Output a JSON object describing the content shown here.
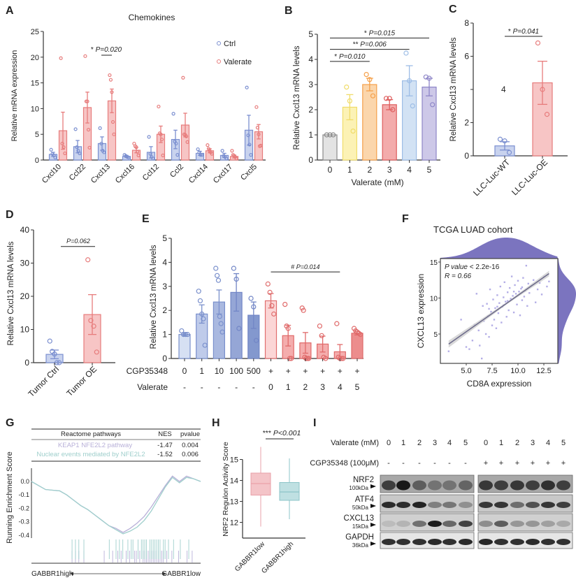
{
  "panel_labels": {
    "A": "A",
    "B": "B",
    "C": "C",
    "D": "D",
    "E": "E",
    "F": "F",
    "G": "G",
    "H": "H",
    "I": "I"
  },
  "colors": {
    "ctrl_fill": "#c9d3ee",
    "ctrl_stroke": "#7b8fd0",
    "val_fill": "#f7c5c5",
    "val_stroke": "#e77c7c",
    "scatter": "#b4aee6",
    "density": "#7b74bf",
    "keap1": "#b8b0d8",
    "nuclear": "#9fcfcc",
    "box_low": "#f4c4c8",
    "box_high": "#bfe0e2"
  },
  "chart_data": [
    {
      "id": "A",
      "type": "bar",
      "title": "Chemokines",
      "ylabel": "Relative mRNA expression",
      "xlabel": "",
      "ylim": [
        0,
        25
      ],
      "yticks": [
        0,
        5,
        10,
        15,
        20,
        25
      ],
      "categories": [
        "Cxcl10",
        "Ccl22",
        "Cxcl13",
        "Cxcl16",
        "Ccl12",
        "Ccl2",
        "Cxcl14",
        "Cxcl17",
        "Cxcl5"
      ],
      "legend_position": "top-right",
      "series": [
        {
          "name": "Ctrl",
          "values": [
            1.1,
            2.6,
            3.2,
            0.7,
            1.5,
            4.0,
            1.3,
            0.9,
            5.8
          ],
          "sem": [
            0.4,
            1.2,
            1.3,
            0.2,
            1.1,
            1.8,
            0.4,
            0.4,
            2.9
          ],
          "points": [
            [
              2.0,
              1.2,
              0.9,
              0.5
            ],
            [
              6.0,
              2.5,
              1.8,
              1.3
            ],
            [
              6.2,
              3.2,
              1.8,
              1.5
            ],
            [
              1.0,
              0.8,
              0.6,
              0.5
            ],
            [
              4.5,
              1.2,
              0.6,
              0.3
            ],
            [
              9.0,
              3.6,
              3.2,
              1.0
            ],
            [
              2.1,
              1.5,
              1.0,
              1.0
            ],
            [
              1.8,
              0.8,
              0.6,
              0.3
            ],
            [
              14.1,
              4.8,
              3.0,
              1.0
            ]
          ]
        },
        {
          "name": "Valerate",
          "values": [
            5.7,
            10.2,
            11.5,
            1.9,
            5.0,
            6.8,
            1.8,
            0.7,
            5.5
          ],
          "sem": [
            3.6,
            3.0,
            2.3,
            0.5,
            1.6,
            2.3,
            0.4,
            0.3,
            1.4
          ],
          "points": [
            [
              19.8,
              3.2,
              2.5,
              1.3
            ],
            [
              20.2,
              11.4,
              11.4,
              5.9,
              2.4
            ],
            [
              16.5,
              15.6,
              13.2,
              7.4,
              5.0
            ],
            [
              3.2,
              2.7,
              2.5,
              1.6,
              0.9
            ],
            [
              10.4,
              5.2,
              5.0,
              4.0,
              0.9
            ],
            [
              16.0,
              5.0,
              4.9,
              4.6,
              3.5
            ],
            [
              2.9,
              2.2,
              1.8,
              1.5,
              1.2
            ],
            [
              1.8,
              1.0,
              0.8,
              0.6,
              0.3
            ],
            [
              10.3,
              6.3,
              5.0,
              2.7,
              2.8
            ]
          ]
        }
      ],
      "annotations": [
        {
          "stars": "*",
          "p": "P=0.020",
          "category": "Cxcl13"
        }
      ]
    },
    {
      "id": "B",
      "type": "bar",
      "ylabel": "Relative Cxcl13 mRNA levels",
      "xlabel": "Valerate (mM)",
      "ylim": [
        0,
        5
      ],
      "yticks": [
        0,
        1,
        2,
        3,
        4,
        5
      ],
      "categories": [
        "0",
        "1",
        "2",
        "3",
        "4",
        "5"
      ],
      "values": [
        1.0,
        2.1,
        3.0,
        2.2,
        3.15,
        2.9
      ],
      "sem": [
        0.02,
        0.5,
        0.25,
        0.2,
        0.6,
        0.35
      ],
      "points": [
        [
          1,
          1,
          1
        ],
        [
          2.9,
          2.35,
          1.15
        ],
        [
          3.4,
          3.2,
          2.55
        ],
        [
          2.45,
          2.45,
          2.0
        ],
        [
          4.25,
          3.15,
          2.15
        ],
        [
          3.3,
          3.25,
          2.2
        ]
      ],
      "bar_colors": [
        [
          "#e3e3e3",
          "#8a8a8a"
        ],
        [
          "#fcf2b5",
          "#f0dc6a"
        ],
        [
          "#fbd6ac",
          "#f5a04a"
        ],
        [
          "#f3abab",
          "#de5e5e"
        ],
        [
          "#d2e2f4",
          "#9dbde6"
        ],
        [
          "#cdc8e8",
          "#8e86c8"
        ]
      ],
      "annotations": [
        {
          "stars": "*",
          "p": "P=0.010",
          "from": "0",
          "to": "2",
          "level": 3.92
        },
        {
          "stars": "**",
          "p": "P=0.006",
          "from": "0",
          "to": "4",
          "level": 4.4
        },
        {
          "stars": "*",
          "p": "P=0.015",
          "from": "0",
          "to": "5",
          "level": 4.85
        }
      ]
    },
    {
      "id": "C",
      "type": "bar",
      "ylabel": "Relative Cxcl13 mRNA levels",
      "xlabel": "",
      "ylim": [
        0,
        8
      ],
      "yticks": [
        0,
        2,
        4,
        6,
        8
      ],
      "categories": [
        "LLC-Luc-WT",
        "LLC-Luc-OE"
      ],
      "values": [
        0.6,
        4.4
      ],
      "sem": [
        0.25,
        1.3
      ],
      "points": [
        [
          1.0,
          0.9,
          0.2
        ],
        [
          6.8,
          4.0,
          2.5
        ]
      ],
      "annotations": [
        {
          "stars": "*",
          "p": "P=0.041",
          "level": 7.2
        }
      ]
    },
    {
      "id": "D",
      "type": "bar",
      "ylabel": "Relative Cxcl13 mRNA levels",
      "xlabel": "",
      "ylim": [
        0,
        40
      ],
      "yticks": [
        0,
        10,
        20,
        30,
        40
      ],
      "categories": [
        "Tumor Ctrl",
        "Tumor OE"
      ],
      "values": [
        2.5,
        14.5
      ],
      "sem": [
        1.3,
        6.0
      ],
      "points": [
        [
          6.5,
          3.4,
          2.6,
          0,
          0
        ],
        [
          31,
          12.7,
          11,
          3.2
        ]
      ],
      "annotations": [
        {
          "stars": "",
          "p": "P=0.062",
          "level": 35
        }
      ]
    },
    {
      "id": "E",
      "type": "bar",
      "ylabel": "Relative Cxcl13 mRNA levels",
      "xlabel": "",
      "ylim": [
        0,
        5
      ],
      "yticks": [
        0,
        1,
        2,
        3,
        4,
        5
      ],
      "row_labels": {
        "cgp": "CGP35348",
        "valerate": "Valerate"
      },
      "cgp_values": [
        "0",
        "1",
        "10",
        "100",
        "500",
        "+",
        "+",
        "+",
        "+",
        "+",
        "+"
      ],
      "valerate_values": [
        "-",
        "-",
        "-",
        "-",
        "-",
        "0",
        "1",
        "2",
        "3",
        "4",
        "5"
      ],
      "values": [
        1.0,
        1.85,
        2.35,
        2.75,
        1.8,
        2.4,
        0.95,
        0.65,
        0.6,
        0.28,
        1.05
      ],
      "sem": [
        0.05,
        0.38,
        0.5,
        0.78,
        0.55,
        0.3,
        0.43,
        0.43,
        0.33,
        0.3,
        0.07
      ],
      "points": [
        [
          1.15,
          1.0,
          1.0,
          1.0
        ],
        [
          2.8,
          2.4,
          1.85,
          1.65,
          0.55
        ],
        [
          3.75,
          3.45,
          3.25,
          1.75,
          1.45,
          1.1
        ],
        [
          3.75,
          3.3,
          1.25
        ],
        [
          2.5,
          2.15,
          0.75
        ],
        [
          3.1,
          2.75,
          2.2,
          1.85
        ],
        [
          2.25,
          1.35,
          1.25,
          0,
          0
        ],
        [
          2.1,
          2.0,
          0.05,
          0,
          0,
          0
        ],
        [
          1.35,
          0.95,
          0.05,
          0
        ],
        [
          1.45,
          0.05,
          0,
          0,
          0
        ],
        [
          1.25,
          1.15,
          1.1,
          1.05,
          1.0
        ]
      ],
      "bar_colors": [
        [
          "#d6e0f3",
          "#7a90cc"
        ],
        [
          "#bfcbea",
          "#7a90cc"
        ],
        [
          "#aab9e0",
          "#7a90cc"
        ],
        [
          "#95a6d6",
          "#7286c6"
        ],
        [
          "#8398ce",
          "#7286c6"
        ],
        [
          "#fbd6d6",
          "#e07070"
        ],
        [
          "#f4adad",
          "#e06a6a"
        ],
        [
          "#f4adad",
          "#e06a6a"
        ],
        [
          "#f4adad",
          "#e06a6a"
        ],
        [
          "#f4adad",
          "#e06a6a"
        ],
        [
          "#ec8d8d",
          "#e06a6a"
        ]
      ],
      "annotations": [
        {
          "stars": "#",
          "p": "P=0.014",
          "from": 5,
          "to": 9,
          "level": 3.6
        }
      ]
    },
    {
      "id": "F",
      "type": "scatter",
      "title": "TCGA LUAD cohort",
      "xlabel": "CD8A expression",
      "ylabel": "CXCL13 expression",
      "xlim": [
        2.5,
        13.85
      ],
      "ylim": [
        0.9,
        15.5
      ],
      "xticks": [
        "5.0",
        "7.5",
        "10.0",
        "12.5"
      ],
      "yticks": [
        "5",
        "10",
        "15"
      ],
      "annotation": {
        "p_label": "P value",
        "p_text": "< 2.2e-16",
        "r_text": "R = 0.66"
      },
      "fit": {
        "slope": 1.01,
        "intercept": 0.27
      },
      "marginal_density": "top-and-right",
      "points": [
        [
          3.3,
          2.6
        ],
        [
          4.5,
          7.0
        ],
        [
          5.0,
          3.2
        ],
        [
          5.3,
          2.9
        ],
        [
          5.6,
          4.1
        ],
        [
          5.8,
          6.3
        ],
        [
          6.0,
          10.6
        ],
        [
          6.2,
          5.5
        ],
        [
          6.3,
          3.4
        ],
        [
          6.5,
          1.6
        ],
        [
          6.6,
          8.9
        ],
        [
          6.7,
          6.8
        ],
        [
          6.9,
          5.0
        ],
        [
          7.0,
          9.2
        ],
        [
          7.1,
          7.5
        ],
        [
          7.2,
          4.6
        ],
        [
          7.3,
          11.2
        ],
        [
          7.4,
          8.1
        ],
        [
          7.5,
          6.2
        ],
        [
          7.6,
          9.8
        ],
        [
          7.7,
          7.0
        ],
        [
          7.8,
          8.6
        ],
        [
          7.9,
          5.8
        ],
        [
          8.0,
          10.4
        ],
        [
          8.1,
          7.9
        ],
        [
          8.2,
          9.3
        ],
        [
          8.3,
          11.6
        ],
        [
          8.4,
          6.6
        ],
        [
          8.5,
          8.8
        ],
        [
          8.6,
          10.1
        ],
        [
          8.7,
          12.2
        ],
        [
          8.8,
          9.5
        ],
        [
          8.9,
          7.4
        ],
        [
          9.0,
          10.8
        ],
        [
          9.1,
          8.3
        ],
        [
          9.2,
          11.4
        ],
        [
          9.3,
          9.9
        ],
        [
          9.4,
          13.0
        ],
        [
          9.5,
          10.3
        ],
        [
          9.6,
          8.0
        ],
        [
          9.7,
          11.8
        ],
        [
          9.8,
          10.6
        ],
        [
          9.9,
          9.1
        ],
        [
          10.0,
          12.4
        ],
        [
          10.1,
          10.9
        ],
        [
          10.2,
          7.6
        ],
        [
          10.3,
          11.3
        ],
        [
          10.4,
          9.7
        ],
        [
          10.5,
          12.8
        ],
        [
          10.6,
          10.2
        ],
        [
          10.7,
          11.0
        ],
        [
          10.8,
          14.5
        ],
        [
          10.9,
          8.9
        ],
        [
          11.0,
          12.0
        ],
        [
          11.1,
          10.7
        ],
        [
          11.3,
          11.7
        ],
        [
          11.5,
          12.5
        ],
        [
          11.7,
          9.4
        ],
        [
          11.9,
          11.2
        ],
        [
          12.1,
          12.1
        ],
        [
          12.3,
          10.5
        ],
        [
          12.5,
          13.0
        ],
        [
          12.8,
          11.6
        ],
        [
          13.0,
          12.3
        ],
        [
          8.0,
          8.8
        ],
        [
          9.0,
          9.6
        ],
        [
          9.6,
          10.9
        ],
        [
          10.4,
          11.5
        ],
        [
          8.6,
          9.0
        ],
        [
          7.2,
          8.5
        ]
      ]
    },
    {
      "id": "G",
      "type": "line",
      "ylabel": "Running Enrichment Score",
      "yticks": [
        "0.0",
        "-0.1",
        "-0.2",
        "-0.3",
        "-0.4"
      ],
      "ylim": [
        -0.42,
        0.08
      ],
      "table": {
        "headers": [
          "Reactome pathways",
          "NES",
          "pvalue"
        ],
        "rows": [
          [
            "KEAP1 NFE2L2 pathway",
            "-1.47",
            "0.004"
          ],
          [
            "Nuclear events mediated by NFE2L2",
            "-1.52",
            "0.006"
          ]
        ]
      },
      "x_left": "GABBR1high",
      "x_right": "GABBR1low",
      "series": [
        {
          "name": "KEAP1 NFE2L2 pathway",
          "values": [
            0,
            -0.03,
            -0.06,
            -0.065,
            -0.07,
            -0.1,
            -0.14,
            -0.18,
            -0.21,
            -0.25,
            -0.29,
            -0.33,
            -0.35,
            -0.38,
            -0.35,
            -0.31,
            -0.26,
            -0.19,
            -0.11,
            -0.03,
            0.04,
            0.0,
            0.04,
            0.02,
            0.0
          ],
          "hits": [
            0.24,
            0.26,
            0.28,
            0.31,
            0.43,
            0.48,
            0.51,
            0.53,
            0.56,
            0.58,
            0.61,
            0.62,
            0.64,
            0.66,
            0.67,
            0.68,
            0.69,
            0.7,
            0.71,
            0.72,
            0.73,
            0.74,
            0.75,
            0.76,
            0.77,
            0.78,
            0.8,
            0.83,
            0.87,
            0.92,
            0.95
          ]
        },
        {
          "name": "Nuclear events mediated by NFE2L2",
          "values": [
            0,
            -0.03,
            -0.06,
            -0.065,
            -0.07,
            -0.1,
            -0.14,
            -0.18,
            -0.21,
            -0.25,
            -0.29,
            -0.33,
            -0.36,
            -0.39,
            -0.37,
            -0.34,
            -0.29,
            -0.22,
            -0.13,
            -0.04,
            0.03,
            -0.01,
            0.03,
            0.02,
            0.0
          ],
          "hits": [
            0.24,
            0.26,
            0.28,
            0.31,
            0.46,
            0.5,
            0.52,
            0.54,
            0.57,
            0.59,
            0.6,
            0.63,
            0.65,
            0.66,
            0.67,
            0.68,
            0.7,
            0.71,
            0.72,
            0.73,
            0.74,
            0.75,
            0.76,
            0.78,
            0.79,
            0.81,
            0.84,
            0.88,
            0.93
          ]
        }
      ]
    },
    {
      "id": "H",
      "type": "box",
      "ylabel": "NRF2 Regulon Activity Score",
      "yticks": [
        12,
        13,
        14,
        15
      ],
      "ylim": [
        11.25,
        15.75
      ],
      "categories": [
        "GABBR1low",
        "GABBR1high"
      ],
      "boxes": [
        {
          "min": 11.8,
          "q1": 13.3,
          "median": 13.85,
          "q3": 14.35,
          "max": 15.6
        },
        {
          "min": 12.15,
          "q1": 13.05,
          "median": 13.45,
          "q3": 13.9,
          "max": 15.05
        }
      ],
      "annotation": {
        "stars": "***",
        "p": "P<0.001"
      }
    }
  ],
  "western_blot": {
    "valerate_label": "Valerate (mM)",
    "cgp_label": "CGP35348 (100μM)",
    "valerate_lanes": [
      "0",
      "1",
      "2",
      "3",
      "4",
      "5",
      "0",
      "1",
      "2",
      "3",
      "4",
      "5"
    ],
    "cgp_lanes": [
      "-",
      "-",
      "-",
      "-",
      "-",
      "-",
      "+",
      "+",
      "+",
      "+",
      "+",
      "+"
    ],
    "rows": [
      {
        "protein": "NRF2",
        "size": "100kDa",
        "intensity": [
          0.7,
          0.95,
          0.5,
          0.35,
          0.35,
          0.45,
          0.75,
          0.7,
          0.75,
          0.7,
          0.8,
          0.7
        ],
        "background": "#a8a8a8"
      },
      {
        "protein": "ATF4",
        "size": "50kDa",
        "intensity": [
          0.85,
          0.85,
          0.9,
          0.4,
          0.45,
          0.3,
          0.8,
          0.8,
          0.5,
          0.65,
          0.8,
          0.75
        ],
        "background": "#c8c8c8"
      },
      {
        "protein": "CXCL13",
        "size": "15kDa",
        "intensity": [
          0.1,
          0.15,
          0.5,
          0.95,
          0.55,
          0.75,
          0.35,
          0.6,
          0.3,
          0.3,
          0.25,
          0.2
        ],
        "background": "#d0d0d0"
      },
      {
        "protein": "GAPDH",
        "size": "36kDa",
        "intensity": [
          0.85,
          0.85,
          0.85,
          0.88,
          0.85,
          0.88,
          0.9,
          0.85,
          0.85,
          0.88,
          0.85,
          0.85
        ],
        "background": "#e6e6e6"
      }
    ]
  }
}
